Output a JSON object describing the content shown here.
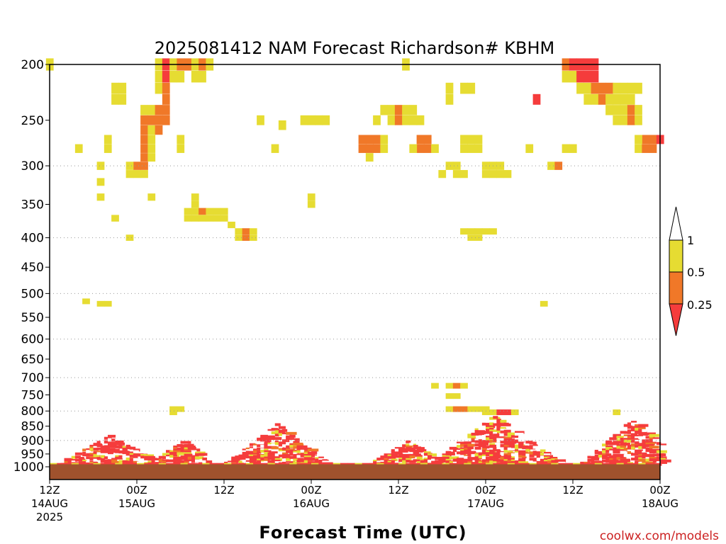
{
  "chart_data": {
    "type": "heatmap",
    "title": "2025081412 NAM Forecast Richardson# KBHM",
    "xlabel": "Forecast Time (UTC)",
    "ylabel": "",
    "y_axis": {
      "scale": "log-pressure",
      "unit": "hPa",
      "range": [
        1000,
        200
      ],
      "ticks": [
        200,
        250,
        300,
        350,
        400,
        450,
        500,
        550,
        600,
        650,
        700,
        750,
        800,
        850,
        900,
        950,
        1000
      ],
      "dotted_grid_levels": [
        300,
        400,
        500,
        600,
        700,
        800,
        900,
        1000
      ]
    },
    "x_axis": {
      "range_hours": [
        0,
        84
      ],
      "ticks": [
        {
          "hour": 0,
          "lines": [
            "12Z",
            "14AUG",
            "2025"
          ]
        },
        {
          "hour": 12,
          "lines": [
            "00Z",
            "15AUG"
          ]
        },
        {
          "hour": 24,
          "lines": [
            "12Z"
          ]
        },
        {
          "hour": 36,
          "lines": [
            "00Z",
            "16AUG"
          ]
        },
        {
          "hour": 48,
          "lines": [
            "12Z"
          ]
        },
        {
          "hour": 60,
          "lines": [
            "00Z",
            "17AUG"
          ]
        },
        {
          "hour": 72,
          "lines": [
            "12Z"
          ]
        },
        {
          "hour": 84,
          "lines": [
            "00Z",
            "18AUG"
          ]
        }
      ]
    },
    "legend": {
      "placement": "right",
      "bins": [
        {
          "range": "0.5 – 1",
          "color": "#e6dc32"
        },
        {
          "range": "0.25 – 0.5",
          "color": "#f07828"
        },
        {
          "range": "< 0.25",
          "color": "#f53c3c"
        }
      ],
      "labels": [
        "1",
        "0.5",
        "0.25"
      ]
    },
    "ground_color": "#a0522d",
    "ground_level_hpa": 990,
    "cells_hour_pressure_category": [
      [
        0,
        200,
        "Y"
      ],
      [
        15,
        200,
        "Y"
      ],
      [
        16,
        200,
        "R"
      ],
      [
        17,
        200,
        "Y"
      ],
      [
        18,
        200,
        "O"
      ],
      [
        19,
        200,
        "O"
      ],
      [
        20,
        200,
        "Y"
      ],
      [
        21,
        200,
        "O"
      ],
      [
        22,
        200,
        "Y"
      ],
      [
        15,
        210,
        "Y"
      ],
      [
        16,
        210,
        "R"
      ],
      [
        17,
        210,
        "Y"
      ],
      [
        18,
        210,
        "Y"
      ],
      [
        20,
        210,
        "Y"
      ],
      [
        21,
        210,
        "Y"
      ],
      [
        9,
        220,
        "Y"
      ],
      [
        10,
        220,
        "Y"
      ],
      [
        15,
        220,
        "Y"
      ],
      [
        16,
        220,
        "O"
      ],
      [
        9,
        230,
        "Y"
      ],
      [
        10,
        230,
        "Y"
      ],
      [
        16,
        230,
        "O"
      ],
      [
        13,
        240,
        "Y"
      ],
      [
        14,
        240,
        "Y"
      ],
      [
        15,
        240,
        "O"
      ],
      [
        16,
        240,
        "O"
      ],
      [
        13,
        250,
        "O"
      ],
      [
        14,
        250,
        "O"
      ],
      [
        15,
        250,
        "O"
      ],
      [
        16,
        250,
        "O"
      ],
      [
        13,
        260,
        "O"
      ],
      [
        14,
        260,
        "Y"
      ],
      [
        15,
        260,
        "O"
      ],
      [
        13,
        270,
        "O"
      ],
      [
        14,
        270,
        "Y"
      ],
      [
        13,
        280,
        "O"
      ],
      [
        14,
        280,
        "Y"
      ],
      [
        13,
        290,
        "O"
      ],
      [
        14,
        290,
        "Y"
      ],
      [
        12,
        300,
        "O"
      ],
      [
        13,
        300,
        "O"
      ],
      [
        12,
        310,
        "Y"
      ],
      [
        13,
        310,
        "Y"
      ],
      [
        4,
        280,
        "Y"
      ],
      [
        8,
        270,
        "Y"
      ],
      [
        8,
        280,
        "Y"
      ],
      [
        7,
        300,
        "Y"
      ],
      [
        7,
        320,
        "Y"
      ],
      [
        7,
        340,
        "Y"
      ],
      [
        9,
        370,
        "Y"
      ],
      [
        11,
        300,
        "Y"
      ],
      [
        11,
        310,
        "Y"
      ],
      [
        14,
        340,
        "Y"
      ],
      [
        11,
        400,
        "Y"
      ],
      [
        18,
        270,
        "Y"
      ],
      [
        18,
        280,
        "Y"
      ],
      [
        5,
        515,
        "Y"
      ],
      [
        7,
        520,
        "Y"
      ],
      [
        8,
        520,
        "Y"
      ],
      [
        20,
        340,
        "Y"
      ],
      [
        20,
        350,
        "Y"
      ],
      [
        19,
        360,
        "Y"
      ],
      [
        20,
        360,
        "Y"
      ],
      [
        21,
        360,
        "O"
      ],
      [
        22,
        360,
        "Y"
      ],
      [
        23,
        360,
        "Y"
      ],
      [
        24,
        360,
        "Y"
      ],
      [
        19,
        370,
        "Y"
      ],
      [
        20,
        370,
        "Y"
      ],
      [
        21,
        370,
        "Y"
      ],
      [
        22,
        370,
        "Y"
      ],
      [
        23,
        370,
        "Y"
      ],
      [
        24,
        370,
        "Y"
      ],
      [
        25,
        380,
        "Y"
      ],
      [
        26,
        390,
        "Y"
      ],
      [
        27,
        390,
        "O"
      ],
      [
        28,
        390,
        "Y"
      ],
      [
        26,
        400,
        "Y"
      ],
      [
        27,
        400,
        "O"
      ],
      [
        28,
        400,
        "Y"
      ],
      [
        29,
        250,
        "Y"
      ],
      [
        32,
        255,
        "Y"
      ],
      [
        35,
        250,
        "Y"
      ],
      [
        36,
        250,
        "Y"
      ],
      [
        37,
        250,
        "Y"
      ],
      [
        38,
        250,
        "Y"
      ],
      [
        36,
        340,
        "Y"
      ],
      [
        36,
        350,
        "Y"
      ],
      [
        31,
        280,
        "Y"
      ],
      [
        43,
        270,
        "O"
      ],
      [
        44,
        270,
        "O"
      ],
      [
        45,
        270,
        "O"
      ],
      [
        46,
        270,
        "Y"
      ],
      [
        43,
        280,
        "O"
      ],
      [
        44,
        280,
        "O"
      ],
      [
        45,
        280,
        "O"
      ],
      [
        46,
        280,
        "Y"
      ],
      [
        44,
        290,
        "Y"
      ],
      [
        45,
        250,
        "Y"
      ],
      [
        46,
        240,
        "Y"
      ],
      [
        47,
        240,
        "Y"
      ],
      [
        48,
        240,
        "O"
      ],
      [
        49,
        240,
        "Y"
      ],
      [
        50,
        240,
        "Y"
      ],
      [
        47,
        250,
        "Y"
      ],
      [
        48,
        250,
        "O"
      ],
      [
        49,
        250,
        "Y"
      ],
      [
        50,
        250,
        "Y"
      ],
      [
        51,
        250,
        "Y"
      ],
      [
        49,
        200,
        "Y"
      ],
      [
        51,
        270,
        "O"
      ],
      [
        52,
        270,
        "O"
      ],
      [
        51,
        280,
        "O"
      ],
      [
        52,
        280,
        "O"
      ],
      [
        53,
        280,
        "Y"
      ],
      [
        50,
        280,
        "Y"
      ],
      [
        55,
        220,
        "Y"
      ],
      [
        55,
        230,
        "Y"
      ],
      [
        57,
        220,
        "Y"
      ],
      [
        58,
        220,
        "Y"
      ],
      [
        54,
        310,
        "Y"
      ],
      [
        55,
        300,
        "Y"
      ],
      [
        56,
        310,
        "Y"
      ],
      [
        57,
        310,
        "Y"
      ],
      [
        56,
        300,
        "Y"
      ],
      [
        57,
        270,
        "Y"
      ],
      [
        58,
        270,
        "Y"
      ],
      [
        59,
        270,
        "Y"
      ],
      [
        57,
        280,
        "Y"
      ],
      [
        58,
        280,
        "Y"
      ],
      [
        59,
        280,
        "Y"
      ],
      [
        60,
        300,
        "Y"
      ],
      [
        61,
        300,
        "Y"
      ],
      [
        62,
        300,
        "Y"
      ],
      [
        60,
        310,
        "Y"
      ],
      [
        61,
        310,
        "Y"
      ],
      [
        62,
        310,
        "Y"
      ],
      [
        63,
        310,
        "Y"
      ],
      [
        57,
        390,
        "Y"
      ],
      [
        58,
        390,
        "Y"
      ],
      [
        59,
        390,
        "Y"
      ],
      [
        60,
        390,
        "Y"
      ],
      [
        61,
        390,
        "Y"
      ],
      [
        58,
        400,
        "Y"
      ],
      [
        59,
        400,
        "Y"
      ],
      [
        66,
        280,
        "Y"
      ],
      [
        67,
        230,
        "R"
      ],
      [
        69,
        300,
        "Y"
      ],
      [
        70,
        300,
        "O"
      ],
      [
        68,
        520,
        "Y"
      ],
      [
        71,
        280,
        "Y"
      ],
      [
        72,
        280,
        "Y"
      ],
      [
        71,
        200,
        "O"
      ],
      [
        72,
        200,
        "R"
      ],
      [
        73,
        200,
        "R"
      ],
      [
        74,
        200,
        "R"
      ],
      [
        75,
        200,
        "R"
      ],
      [
        71,
        210,
        "Y"
      ],
      [
        72,
        210,
        "Y"
      ],
      [
        73,
        210,
        "R"
      ],
      [
        74,
        210,
        "R"
      ],
      [
        75,
        210,
        "R"
      ],
      [
        73,
        220,
        "Y"
      ],
      [
        74,
        220,
        "Y"
      ],
      [
        75,
        220,
        "O"
      ],
      [
        76,
        220,
        "O"
      ],
      [
        77,
        220,
        "O"
      ],
      [
        74,
        230,
        "Y"
      ],
      [
        75,
        230,
        "Y"
      ],
      [
        76,
        230,
        "O"
      ],
      [
        77,
        230,
        "Y"
      ],
      [
        78,
        220,
        "Y"
      ],
      [
        79,
        220,
        "Y"
      ],
      [
        80,
        220,
        "Y"
      ],
      [
        81,
        220,
        "Y"
      ],
      [
        78,
        230,
        "Y"
      ],
      [
        79,
        230,
        "Y"
      ],
      [
        80,
        230,
        "Y"
      ],
      [
        77,
        240,
        "Y"
      ],
      [
        78,
        240,
        "Y"
      ],
      [
        79,
        240,
        "Y"
      ],
      [
        80,
        240,
        "O"
      ],
      [
        81,
        240,
        "Y"
      ],
      [
        78,
        250,
        "Y"
      ],
      [
        79,
        250,
        "Y"
      ],
      [
        80,
        250,
        "O"
      ],
      [
        81,
        250,
        "Y"
      ],
      [
        82,
        270,
        "O"
      ],
      [
        83,
        270,
        "O"
      ],
      [
        84,
        270,
        "R"
      ],
      [
        81,
        270,
        "Y"
      ],
      [
        81,
        280,
        "Y"
      ],
      [
        82,
        280,
        "O"
      ],
      [
        83,
        280,
        "O"
      ],
      [
        53,
        720,
        "Y"
      ],
      [
        55,
        720,
        "Y"
      ],
      [
        56,
        720,
        "O"
      ],
      [
        57,
        720,
        "Y"
      ],
      [
        55,
        750,
        "Y"
      ],
      [
        56,
        750,
        "Y"
      ],
      [
        55,
        790,
        "Y"
      ],
      [
        56,
        790,
        "O"
      ],
      [
        57,
        790,
        "O"
      ],
      [
        58,
        790,
        "Y"
      ],
      [
        59,
        790,
        "Y"
      ],
      [
        60,
        790,
        "Y"
      ],
      [
        60,
        800,
        "Y"
      ],
      [
        61,
        800,
        "Y"
      ],
      [
        62,
        800,
        "R"
      ],
      [
        63,
        800,
        "R"
      ],
      [
        64,
        800,
        "Y"
      ],
      [
        17,
        790,
        "Y"
      ],
      [
        18,
        790,
        "Y"
      ],
      [
        17,
        800,
        "Y"
      ],
      [
        78,
        800,
        "Y"
      ]
    ],
    "boundary_layer_bands": [
      {
        "from_hour": 0,
        "to_hour": 14,
        "top_hpa": 880,
        "peak_hour": 8
      },
      {
        "from_hour": 14,
        "to_hour": 22,
        "top_hpa": 890,
        "peak_hour": 18
      },
      {
        "from_hour": 24,
        "to_hour": 38,
        "top_hpa": 840,
        "peak_hour": 31
      },
      {
        "from_hour": 43,
        "to_hour": 53,
        "top_hpa": 900,
        "peak_hour": 49
      },
      {
        "from_hour": 52,
        "to_hour": 70,
        "top_hpa": 810,
        "peak_hour": 61
      },
      {
        "from_hour": 70,
        "to_hour": 84,
        "top_hpa": 820,
        "peak_hour": 80
      }
    ]
  },
  "credit": "coolwx.com/models"
}
